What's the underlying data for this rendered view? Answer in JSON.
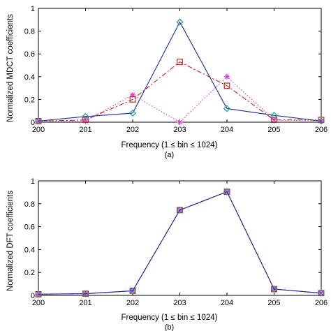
{
  "chart_data": [
    {
      "type": "line",
      "caption": "(a)",
      "xlabel": "Frequency (1 ≤ bin ≤ 1024)",
      "ylabel": "Normalized MDCT coefficients",
      "xlim": [
        200,
        206
      ],
      "ylim": [
        0,
        1
      ],
      "x": [
        200,
        201,
        202,
        203,
        204,
        205,
        206
      ],
      "xticks": [
        "200",
        "201",
        "202",
        "203",
        "204",
        "205",
        "206"
      ],
      "yticks": [
        "0",
        "0.2",
        "0.4",
        "0.6",
        "0.8",
        "1"
      ],
      "grid": false,
      "series": [
        {
          "marker": "diamond",
          "line": "solid",
          "color": "#1f2a9c",
          "marker_color": "#1a9aa0",
          "values": [
            0.01,
            0.05,
            0.08,
            0.88,
            0.12,
            0.06,
            0.01
          ]
        },
        {
          "marker": "square",
          "line": "dashdot",
          "color": "#cc2222",
          "marker_color": "#cc2222",
          "values": [
            0.01,
            0.02,
            0.2,
            0.53,
            0.32,
            0.02,
            0.02
          ]
        },
        {
          "marker": "star",
          "line": "dotted",
          "color": "#dd33cc",
          "marker_color": "#dd33cc",
          "values": [
            0.01,
            0.01,
            0.24,
            0.0,
            0.4,
            0.02,
            0.01
          ]
        }
      ]
    },
    {
      "type": "line",
      "caption": "(b)",
      "xlabel": "Frequency (1 ≤ bin ≤ 1024)",
      "ylabel": "Normalized DFT coefficients",
      "xlim": [
        200,
        206
      ],
      "ylim": [
        0,
        1
      ],
      "x": [
        200,
        201,
        202,
        203,
        204,
        205,
        206
      ],
      "xticks": [
        "200",
        "201",
        "202",
        "203",
        "204",
        "205",
        "206"
      ],
      "yticks": [
        "0",
        "0.2",
        "0.4",
        "0.6",
        "0.8",
        "1"
      ],
      "grid": false,
      "series": [
        {
          "marker": "diamond",
          "line": "solid",
          "color": "#1f2a9c",
          "marker_color": "#1a9aa0",
          "values": [
            0.01,
            0.015,
            0.04,
            0.745,
            0.905,
            0.055,
            0.02
          ]
        },
        {
          "marker": "square",
          "line": "dashdot",
          "color": "#cc2222",
          "marker_color": "#cc2222",
          "values": [
            0.01,
            0.015,
            0.04,
            0.745,
            0.905,
            0.055,
            0.02
          ]
        },
        {
          "marker": "star",
          "line": "dotted",
          "color": "#dd33cc",
          "marker_color": "#dd33cc",
          "values": [
            0.01,
            0.015,
            0.04,
            0.745,
            0.905,
            0.055,
            0.02
          ]
        }
      ]
    }
  ]
}
